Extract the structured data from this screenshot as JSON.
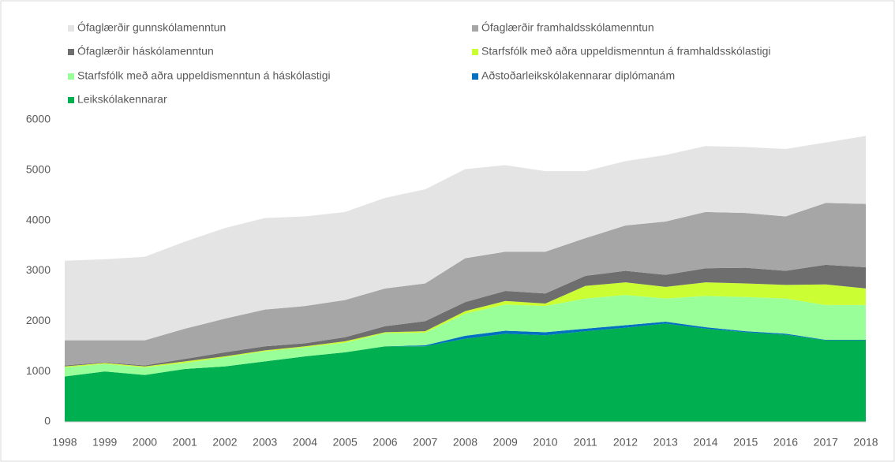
{
  "chart_data": {
    "type": "stacked_area",
    "categories": [
      "1998",
      "1999",
      "2000",
      "2001",
      "2002",
      "2003",
      "2004",
      "2005",
      "2006",
      "2007",
      "2008",
      "2009",
      "2010",
      "2011",
      "2012",
      "2013",
      "2014",
      "2015",
      "2016",
      "2017",
      "2018"
    ],
    "series": [
      {
        "name": "Ófaglærðir gunnskólamenntun",
        "color": "#e4e4e4",
        "values": [
          1580,
          1610,
          1660,
          1730,
          1800,
          1820,
          1780,
          1750,
          1800,
          1870,
          1770,
          1720,
          1600,
          1330,
          1280,
          1320,
          1310,
          1310,
          1340,
          1200,
          1350
        ]
      },
      {
        "name": "Ófaglærðir framhaldsskólamenntun",
        "color": "#a6a6a6",
        "values": [
          500,
          440,
          500,
          600,
          670,
          730,
          740,
          740,
          750,
          750,
          870,
          780,
          830,
          750,
          900,
          1060,
          1120,
          1090,
          1080,
          1230,
          1260
        ]
      },
      {
        "name": "Ófaglærðir háskólamenntun",
        "color": "#6e6e6e",
        "values": [
          20,
          10,
          20,
          50,
          80,
          80,
          60,
          80,
          120,
          200,
          180,
          200,
          200,
          200,
          230,
          240,
          280,
          310,
          280,
          390,
          420
        ]
      },
      {
        "name": "Starfsfólk með aðra uppeldismenntun á framhaldsskólastigi",
        "color": "#ccff33",
        "values": [
          20,
          20,
          20,
          30,
          20,
          20,
          20,
          30,
          20,
          30,
          50,
          70,
          50,
          250,
          250,
          230,
          270,
          270,
          270,
          410,
          330
        ]
      },
      {
        "name": "Starfsfólk með aðra uppeldismenntun á háskólastigi",
        "color": "#99ff99",
        "values": [
          180,
          150,
          150,
          120,
          180,
          200,
          180,
          190,
          260,
          250,
          440,
          520,
          520,
          600,
          600,
          460,
          620,
          680,
          700,
          690,
          690
        ]
      },
      {
        "name": "Aðstoðarleikskólakennarar diplómanám",
        "color": "#0070c0",
        "values": [
          0,
          0,
          0,
          0,
          0,
          0,
          0,
          0,
          0,
          20,
          60,
          60,
          60,
          50,
          50,
          40,
          30,
          20,
          20,
          10,
          10
        ]
      },
      {
        "name": "Leikskólakennarar",
        "color": "#00b050",
        "values": [
          900,
          1000,
          930,
          1050,
          1100,
          1200,
          1300,
          1380,
          1500,
          1500,
          1650,
          1750,
          1720,
          1800,
          1870,
          1950,
          1850,
          1780,
          1730,
          1620,
          1620
        ]
      }
    ],
    "ylim": [
      0,
      6000
    ],
    "yticks": [
      0,
      1000,
      2000,
      3000,
      4000,
      5000,
      6000
    ],
    "grid": false
  }
}
